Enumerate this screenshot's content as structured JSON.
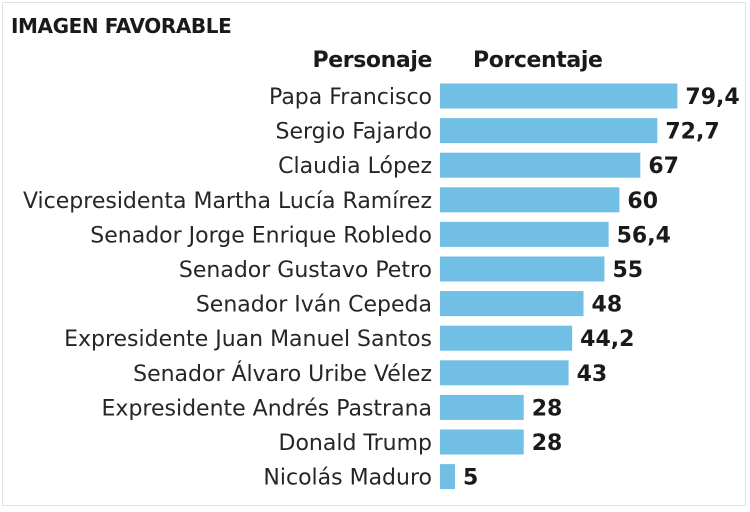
{
  "chart_data": {
    "type": "bar",
    "orientation": "horizontal",
    "title": "IMAGEN FAVORABLE",
    "category_header": "Personaje",
    "value_header": "Porcentaje",
    "categories": [
      "Papa Francisco",
      "Sergio Fajardo",
      "Claudia López",
      "Vicepresidenta Martha Lucía Ramírez",
      "Senador Jorge Enrique Robledo",
      "Senador Gustavo Petro",
      "Senador Iván Cepeda",
      "Expresidente Juan Manuel Santos",
      "Senador Álvaro Uribe Vélez",
      "Expresidente Andrés Pastrana",
      "Donald Trump",
      "Nicolás Maduro"
    ],
    "values": [
      79.4,
      72.7,
      67,
      60,
      56.4,
      55,
      48,
      44.2,
      43,
      28,
      28,
      5
    ],
    "value_labels": [
      "79,4",
      "72,7",
      "67",
      "60",
      "56,4",
      "55",
      "48",
      "44,2",
      "43",
      "28",
      "28",
      "5"
    ],
    "bar_color": "#72bfe6",
    "grid": false,
    "legend": "none"
  }
}
